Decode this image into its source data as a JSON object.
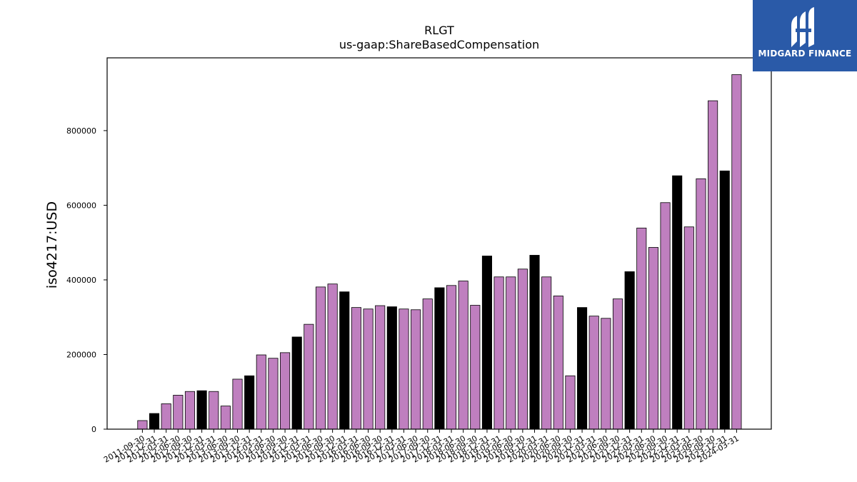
{
  "brand": {
    "name": "MIDGARD FINANCE",
    "background": "#2a5aa8"
  },
  "chart_data": {
    "type": "bar",
    "title": "RLGT",
    "subtitle": "us-gaap:ShareBasedCompensation",
    "xlabel": "",
    "ylabel": "iso4217:USD",
    "ylim": [
      0,
      995000
    ],
    "yticks": [
      0,
      200000,
      400000,
      600000,
      800000
    ],
    "grid": false,
    "colors": {
      "quarter": "#bf7fbf",
      "fiscal_year_end": "#000000"
    },
    "categories": [
      "2011-09-30",
      "2011-12-31",
      "2012-03-31",
      "2012-06-30",
      "2012-09-30",
      "2012-12-31",
      "2013-03-31",
      "2013-06-30",
      "2013-09-30",
      "2013-12-31",
      "2014-03-31",
      "2014-06-30",
      "2014-09-30",
      "2014-12-31",
      "2015-03-31",
      "2015-06-30",
      "2015-09-30",
      "2015-12-31",
      "2016-03-31",
      "2016-06-30",
      "2016-09-30",
      "2016-12-31",
      "2017-03-31",
      "2017-06-30",
      "2017-09-30",
      "2017-12-31",
      "2018-03-31",
      "2018-06-30",
      "2018-09-30",
      "2018-12-31",
      "2019-03-31",
      "2019-06-30",
      "2019-09-30",
      "2019-12-31",
      "2020-03-31",
      "2020-06-30",
      "2020-09-30",
      "2020-12-31",
      "2021-03-31",
      "2021-06-30",
      "2021-09-30",
      "2021-12-31",
      "2022-03-31",
      "2022-06-30",
      "2022-09-30",
      "2022-12-31",
      "2023-03-31",
      "2023-06-30",
      "2023-09-30",
      "2023-12-31",
      "2024-03-31"
    ],
    "values": [
      23000,
      42000,
      68000,
      91000,
      101000,
      103000,
      101000,
      62000,
      134000,
      143000,
      199000,
      190000,
      205000,
      247000,
      281000,
      381000,
      389000,
      368000,
      326000,
      322000,
      331000,
      328000,
      322000,
      320000,
      349000,
      379000,
      385000,
      397000,
      332000,
      464000,
      408000,
      408000,
      429000,
      466000,
      408000,
      357000,
      143000,
      326000,
      303000,
      297000,
      349000,
      422000,
      539000,
      487000,
      607000,
      679000,
      542000,
      671000,
      880000,
      692000,
      950000
    ],
    "fiscal_year_end": [
      false,
      true,
      false,
      false,
      false,
      true,
      false,
      false,
      false,
      true,
      false,
      false,
      false,
      true,
      false,
      false,
      false,
      true,
      false,
      false,
      false,
      true,
      false,
      false,
      false,
      true,
      false,
      false,
      false,
      true,
      false,
      false,
      false,
      true,
      false,
      false,
      false,
      true,
      false,
      false,
      false,
      true,
      false,
      false,
      false,
      true,
      false,
      false,
      false,
      true,
      false
    ]
  }
}
